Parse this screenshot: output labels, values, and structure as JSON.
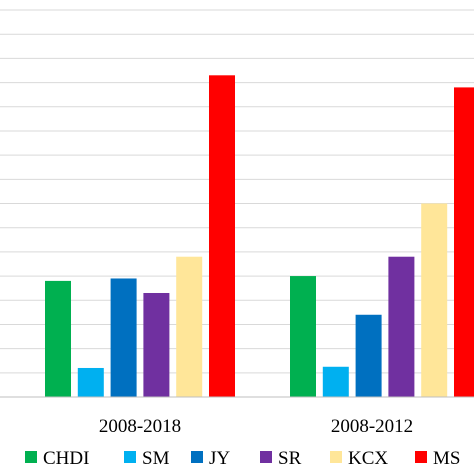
{
  "chart_data": {
    "type": "bar",
    "title": "",
    "xlabel": "",
    "ylabel": "",
    "ylim": [
      0,
      16
    ],
    "grid": true,
    "legend_position": "bottom",
    "categories": [
      "2008-2018",
      "2008-2012"
    ],
    "series": [
      {
        "name": "CHDI",
        "color": "#00b050",
        "values": [
          4.8,
          5.0
        ]
      },
      {
        "name": "SM",
        "color": "#00b0f0",
        "values": [
          1.2,
          1.25
        ]
      },
      {
        "name": "JY",
        "color": "#0070c0",
        "values": [
          4.9,
          3.4
        ]
      },
      {
        "name": "SR",
        "color": "#7030a0",
        "values": [
          4.3,
          5.8
        ]
      },
      {
        "name": "KCX",
        "color": "#ffe699",
        "values": [
          5.8,
          8.0
        ]
      },
      {
        "name": "MS",
        "color": "#ff0000",
        "values": [
          13.3,
          12.8
        ]
      }
    ]
  }
}
